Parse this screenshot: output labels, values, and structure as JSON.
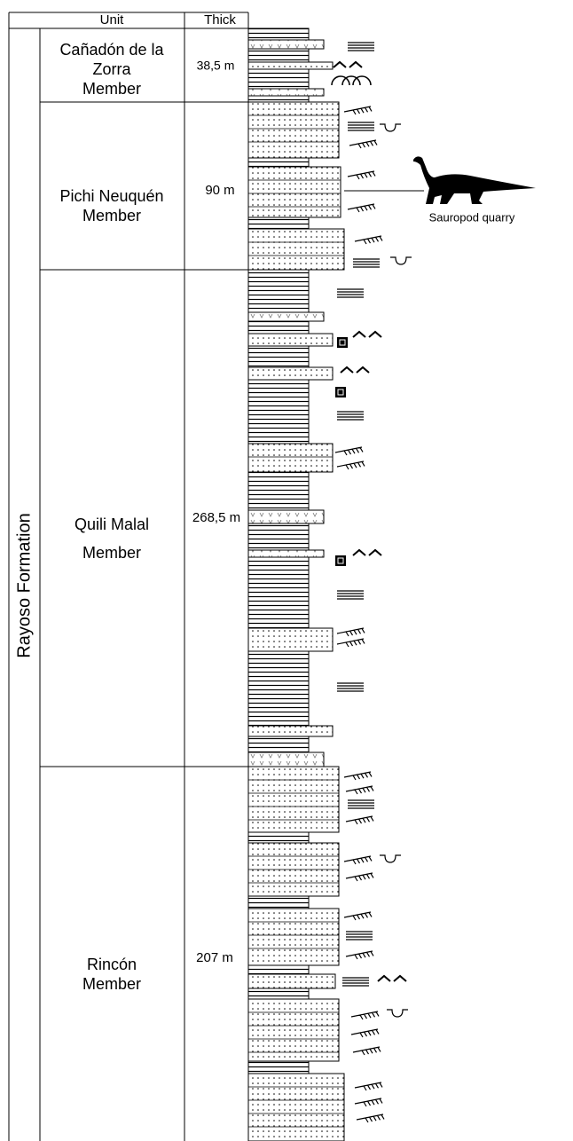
{
  "header": {
    "unit": "Unit",
    "thick": "Thick"
  },
  "formation": "Rayoso Formation",
  "members": [
    {
      "name_lines": [
        "Cañadón de la",
        "Zorra",
        "Member"
      ],
      "thickness": "38,5 m"
    },
    {
      "name_lines": [
        "Pichi Neuquén",
        "Member"
      ],
      "thickness": "90 m"
    },
    {
      "name_lines": [
        "Quili Malal",
        "Member"
      ],
      "thickness": "268,5 m"
    },
    {
      "name_lines": [
        "Rincón",
        "Member"
      ],
      "thickness": "207 m"
    }
  ],
  "annotation": "Sauropod quarry"
}
